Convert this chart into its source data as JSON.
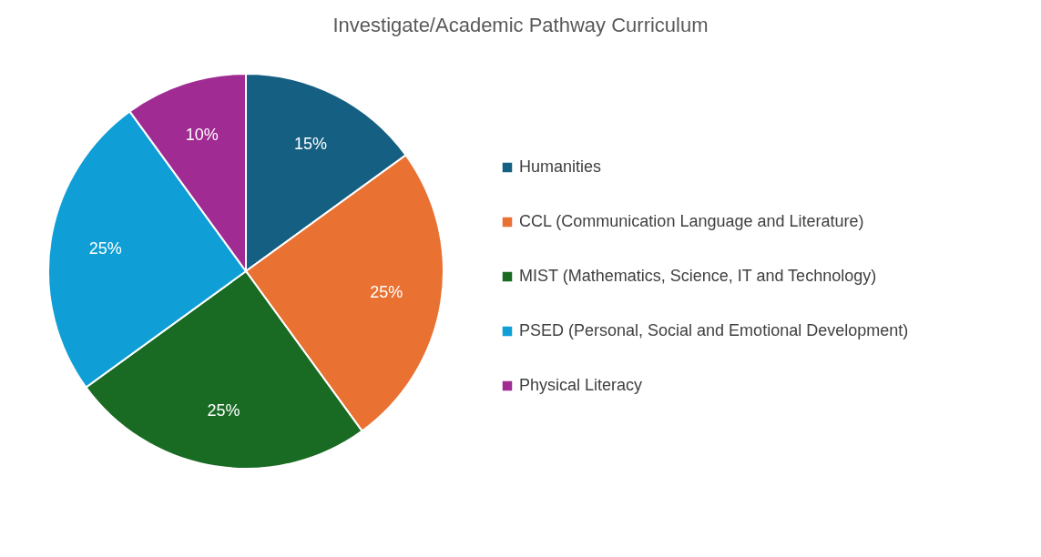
{
  "chart_data": {
    "type": "pie",
    "title": "Investigate/Academic Pathway  Curriculum",
    "categories": [
      "Humanities",
      "CCL (Communication Language and Literature)",
      "MIST (Mathematics, Science, IT and Technology)",
      "PSED (Personal, Social and Emotional Development)",
      "Physical Literacy"
    ],
    "values": [
      15,
      25,
      25,
      25,
      10
    ],
    "value_labels": [
      "15%",
      "25%",
      "25%",
      "25%",
      "10%"
    ],
    "colors": [
      "#156082",
      "#e97132",
      "#196b24",
      "#0f9ed5",
      "#a02b93"
    ],
    "legend": "right"
  }
}
